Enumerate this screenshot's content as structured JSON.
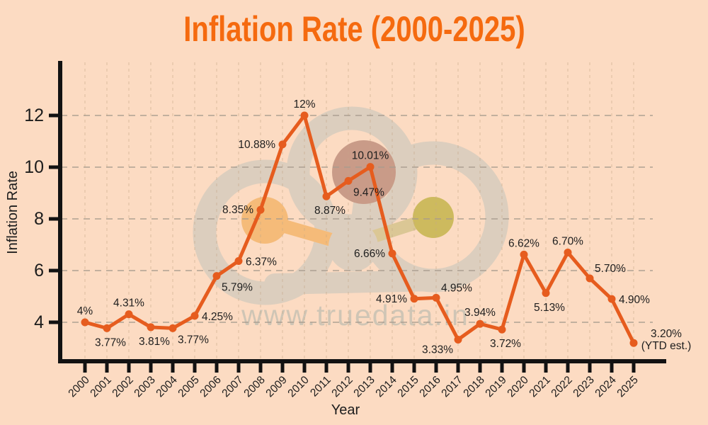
{
  "watermark": {
    "text": "www.truedata.in"
  },
  "chart_data": {
    "type": "line",
    "title": "Inflation Rate (2000-2025)",
    "xlabel": "Year",
    "ylabel": "Inflation Rate",
    "x": [
      2000,
      2001,
      2002,
      2003,
      2004,
      2005,
      2006,
      2007,
      2008,
      2009,
      2010,
      2011,
      2012,
      2013,
      2014,
      2015,
      2016,
      2017,
      2018,
      2019,
      2020,
      2021,
      2022,
      2023,
      2024,
      2025
    ],
    "series": [
      {
        "name": "Inflation Rate",
        "values": [
          4,
          3.77,
          4.31,
          3.81,
          3.77,
          4.25,
          5.79,
          6.37,
          8.35,
          10.88,
          12,
          8.87,
          9.47,
          10.01,
          6.66,
          4.91,
          4.95,
          3.33,
          3.94,
          3.72,
          6.62,
          5.13,
          6.7,
          5.7,
          4.9,
          3.2
        ]
      }
    ],
    "point_labels": [
      "4%",
      "3.77%",
      "4.31%",
      "3.81%",
      "3.77%",
      "4.25%",
      "5.79%",
      "6.37%",
      "8.35%",
      "10.88%",
      "12%",
      "8.87%",
      "9.47%",
      "10.01%",
      "6.66%",
      "4.91%",
      "4.95%",
      "3.33%",
      "3.94%",
      "3.72%",
      "6.62%",
      "5.13%",
      "6.70%",
      "5.70%",
      "4.90%",
      "3.20%"
    ],
    "point_label_positions": [
      "above",
      "below",
      "above",
      "below",
      "below-right",
      "right",
      "below-right",
      "right",
      "left",
      "left",
      "above",
      "below",
      "below-right",
      "above",
      "left",
      "left",
      "above-right",
      "below-left",
      "above",
      "below",
      "above",
      "below",
      "above",
      "above-right",
      "right",
      "right"
    ],
    "last_point_note": "(YTD est.)",
    "yticks": [
      4,
      6,
      8,
      10,
      12
    ],
    "ylim": [
      2.4,
      14.0
    ],
    "grid": true,
    "legend": false
  },
  "colors": {
    "background": "#FCDBC2",
    "title": "#F56A0F",
    "line": "#E65C1E",
    "marker": "#E65C1E",
    "label": "#1E1E1E",
    "tick_label": "#1C1C1C",
    "axis": "#121212",
    "grid_h": "#A89C8E",
    "grid_v": "#C6A888",
    "watermark_gray": "#DCCEBE",
    "watermark_text": "#CFC5B5",
    "watermark_orange": "#F5BB79",
    "watermark_beige": "#DBC795",
    "watermark_olive": "#CDBA5E",
    "watermark_mauve": "#C99B88"
  }
}
